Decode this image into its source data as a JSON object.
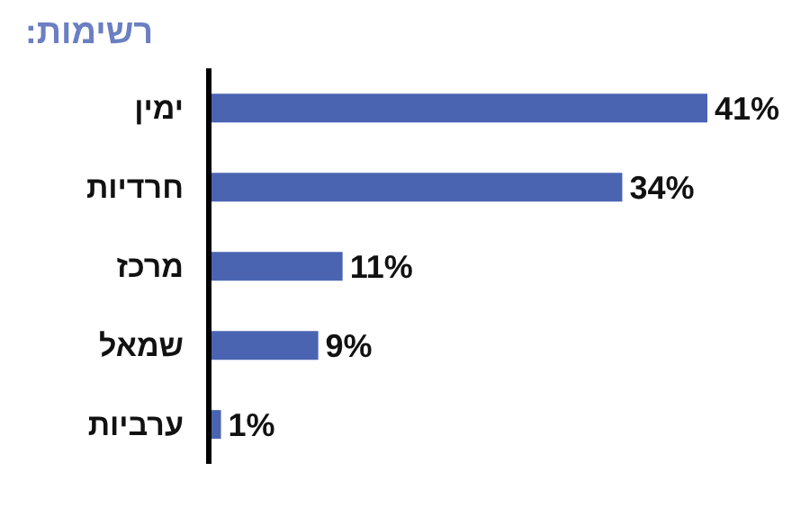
{
  "chart_data": {
    "type": "bar",
    "orientation": "horizontal",
    "title": "רשימות:",
    "categories": [
      "ימין",
      "חרדיות",
      "מרכז",
      "שמאל",
      "ערביות"
    ],
    "values": [
      41,
      34,
      11,
      9,
      1
    ],
    "value_labels": [
      "41%",
      "34%",
      "11%",
      "9%",
      "1%"
    ],
    "color": "#4a64b2",
    "legend": false,
    "grid": false
  }
}
